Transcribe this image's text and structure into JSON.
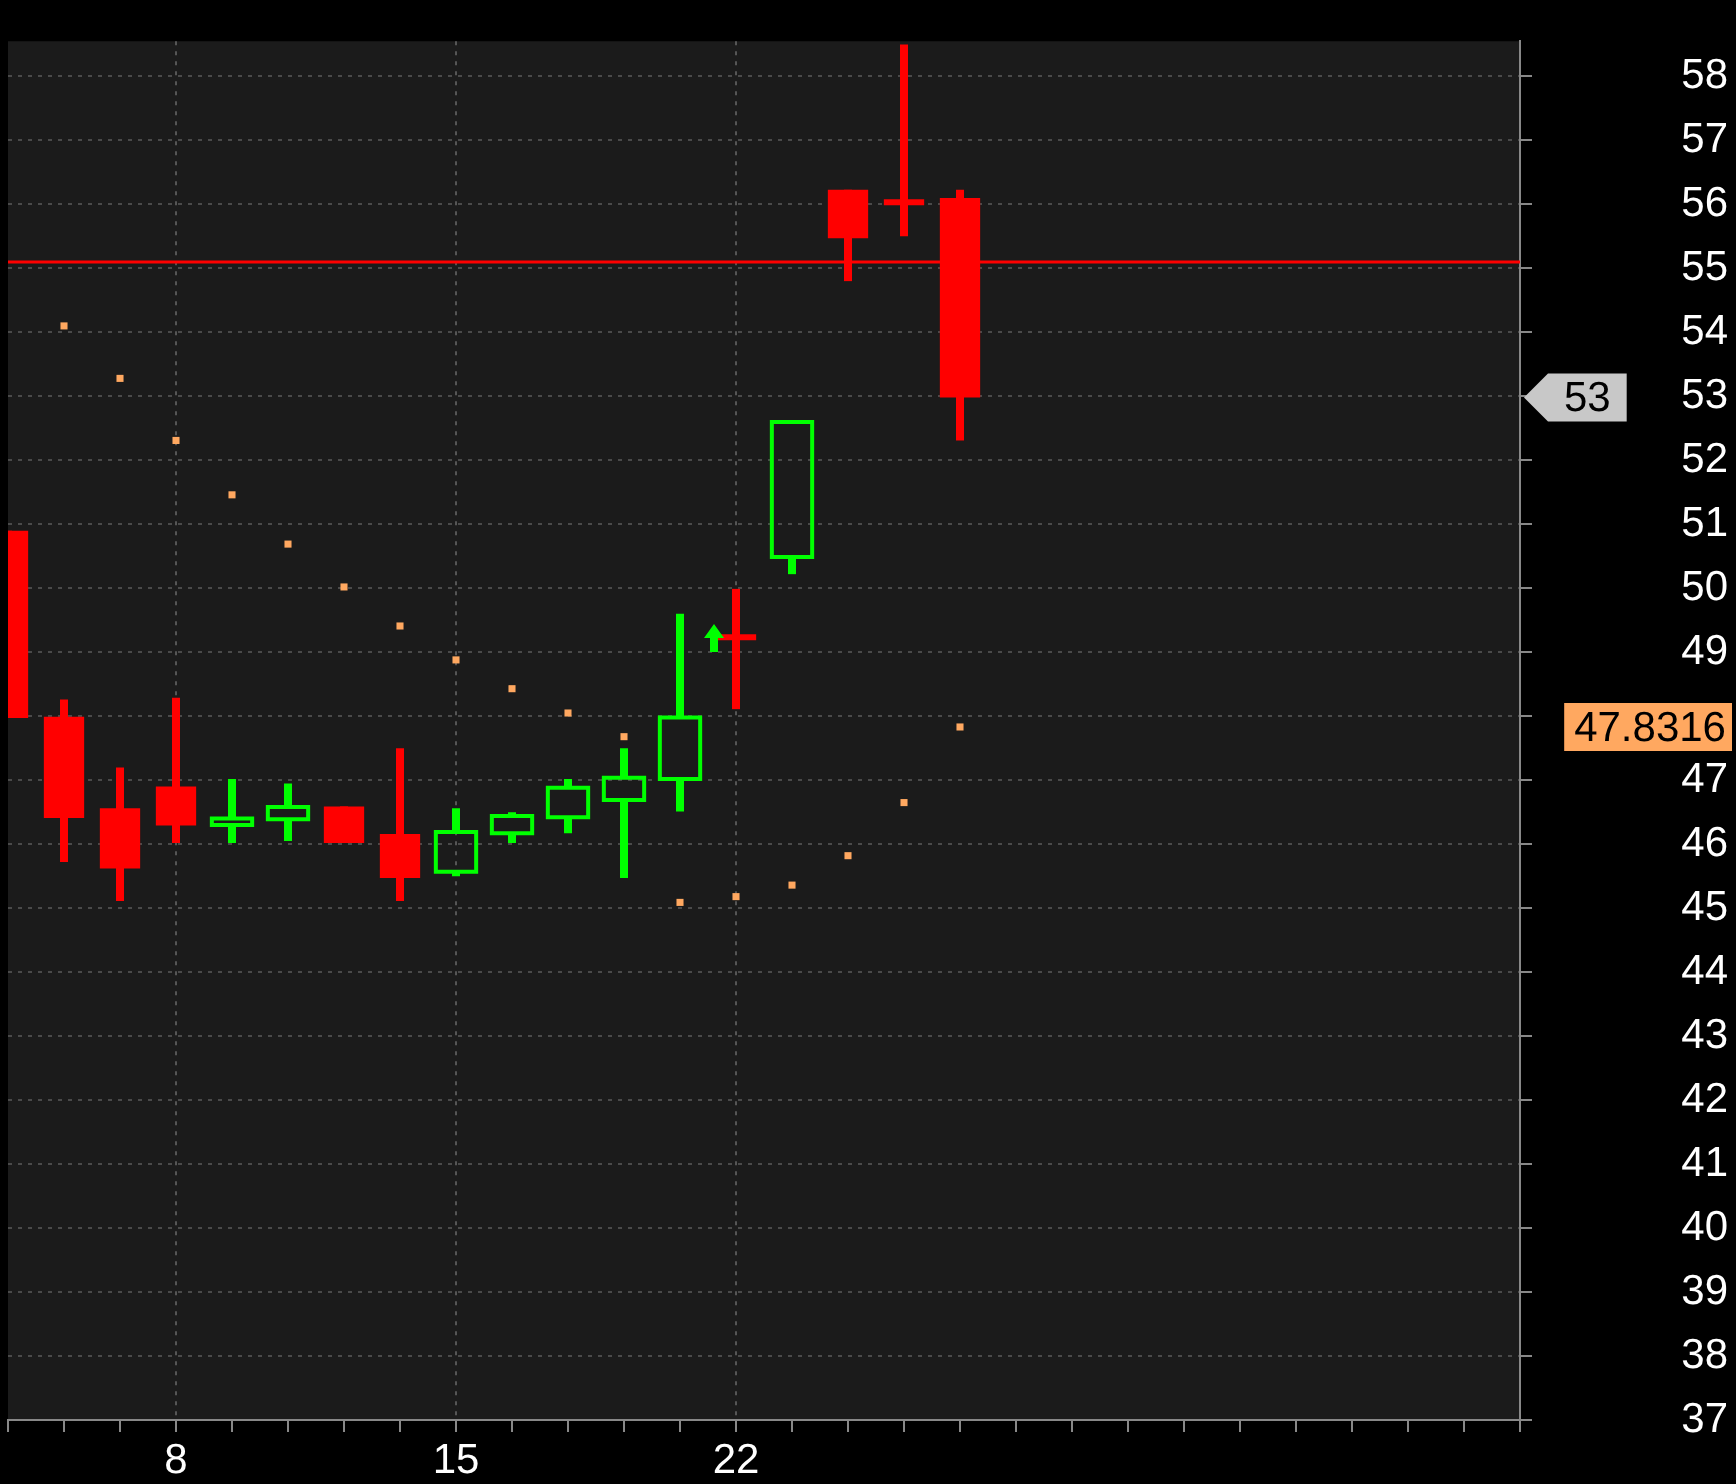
{
  "chart_data": {
    "type": "candlestick",
    "categories": [
      null,
      null,
      null,
      "8",
      null,
      null,
      null,
      null,
      "15",
      null,
      null,
      null,
      null,
      "22",
      null,
      null,
      null,
      null,
      null,
      null,
      null,
      null,
      null,
      null,
      null,
      null,
      null,
      null
    ],
    "ohlc": [
      [
        50.9,
        50.9,
        47.97,
        47.97
      ],
      [
        47.99,
        48.26,
        45.72,
        46.41
      ],
      [
        46.56,
        47.2,
        45.11,
        45.62
      ],
      [
        46.9,
        48.29,
        46.02,
        46.29
      ],
      [
        46.3,
        47.02,
        46.02,
        46.4
      ],
      [
        46.39,
        46.95,
        46.05,
        46.58
      ],
      [
        46.59,
        46.59,
        46.02,
        46.02
      ],
      [
        46.16,
        47.5,
        45.11,
        45.47
      ],
      [
        45.57,
        46.56,
        45.5,
        46.19
      ],
      [
        46.17,
        46.5,
        46.02,
        46.44
      ],
      [
        46.42,
        47.02,
        46.17,
        46.88
      ],
      [
        46.69,
        47.5,
        45.47,
        47.04
      ],
      [
        47.02,
        49.6,
        46.51,
        47.98
      ],
      [
        49.28,
        49.99,
        48.11,
        49.2
      ],
      [
        50.49,
        52.6,
        50.22,
        52.6
      ],
      [
        56.23,
        56.23,
        54.8,
        55.47
      ],
      [
        56.08,
        58.5,
        55.5,
        56.02
      ],
      [
        56.1,
        56.23,
        52.31,
        52.98
      ],
      null,
      null,
      null,
      null,
      null,
      null,
      null,
      null,
      null,
      null
    ],
    "colors": [
      "#ff0000",
      "#ff0000",
      "#ff0000",
      "#ff0000",
      "#00ff00",
      "#00ff00",
      "#ff0000",
      "#ff0000",
      "#00ff00",
      "#00ff00",
      "#00ff00",
      "#00ff00",
      "#00ff00",
      "#ff0000",
      "#00ff00",
      "#ff0000",
      "#ff0000",
      "#ff0000",
      null,
      null,
      null,
      null,
      null,
      null,
      null,
      null,
      null,
      null
    ],
    "series": [
      {
        "type": "scatter",
        "color": "#ffa860",
        "values": [
          null,
          54.1,
          53.28,
          52.31,
          51.46,
          50.69,
          50.02,
          49.41,
          48.88,
          48.43,
          48.05,
          47.68,
          45.09,
          45.18,
          45.36,
          45.82,
          46.65,
          47.8316,
          null,
          null,
          null,
          null,
          null,
          null,
          null,
          null,
          null,
          null
        ]
      }
    ],
    "marker": "square",
    "ylim": [
      37,
      58.55
    ],
    "yticks": [
      37,
      38,
      39,
      40,
      41,
      42,
      43,
      44,
      45,
      46,
      47,
      {
        "value": 48,
        "label": null
      },
      49,
      50,
      51,
      52,
      53,
      54,
      55,
      56,
      57,
      58
    ],
    "grid": true,
    "ref_lines": [
      {
        "axis": "y",
        "value": 55.1,
        "color": "#ff0000"
      }
    ],
    "annotations": [
      "53",
      "47.8316"
    ]
  }
}
